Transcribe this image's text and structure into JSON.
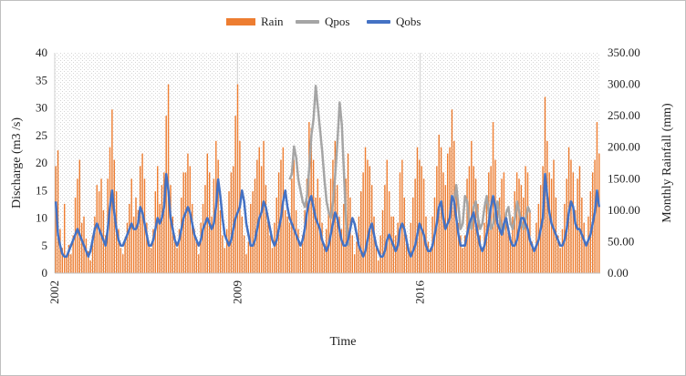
{
  "chart_data": {
    "type": "bar+line",
    "xlabel": "Time",
    "ylabel_left": "Discharge (m3 /s)",
    "ylabel_right": "Monthly Rainfall (mm)",
    "ylim_left": [
      0,
      40
    ],
    "ylim_right": [
      0,
      350
    ],
    "yticks_left": [
      "0",
      "5",
      "10",
      "15",
      "20",
      "25",
      "30",
      "35",
      "40"
    ],
    "yticks_right": [
      "0.00",
      "50.00",
      "100.00",
      "150.00",
      "200.00",
      "250.00",
      "300.00",
      "350.00"
    ],
    "xticks": [
      "2002",
      "2009",
      "2016"
    ],
    "x_range": [
      2002,
      2022.9
    ],
    "grid": "patterned background",
    "legend_position": "top",
    "colors": {
      "rain": "#ED7D31",
      "qpos": "#A5A5A5",
      "qobs": "#4472C4"
    },
    "series": [
      {
        "name": "Rain",
        "axis": "right",
        "type": "bar"
      },
      {
        "name": "Qpos",
        "axis": "left",
        "type": "line",
        "segments": [
          {
            "start": 2011.0,
            "step": 0.0833,
            "values": [
              17,
              18,
              23,
              21,
              17,
              15,
              13,
              12,
              14,
              19,
              25,
              28,
              34,
              30,
              26,
              22,
              17,
              13,
              11,
              10,
              13,
              18,
              24,
              31,
              27,
              18,
              9,
              5
            ]
          },
          {
            "start": 2017.3,
            "step": 0.0833,
            "values": [
              13,
              16,
              12,
              8,
              9,
              14,
              13,
              9,
              8,
              12,
              13,
              10,
              8,
              9,
              12,
              14,
              11,
              8,
              9,
              11,
              13,
              10,
              7,
              8,
              11,
              12,
              9,
              8,
              10,
              13,
              11,
              9,
              8,
              10,
              12,
              11
            ]
          }
        ]
      },
      {
        "name": "Qobs",
        "axis": "left",
        "type": "line"
      }
    ],
    "rain_monthly": [
      170,
      195,
      70,
      40,
      110,
      25,
      45,
      30,
      60,
      120,
      150,
      180,
      80,
      90,
      55,
      35,
      20,
      60,
      90,
      140,
      130,
      150,
      100,
      60,
      150,
      200,
      260,
      180,
      130,
      70,
      40,
      30,
      50,
      80,
      110,
      150,
      90,
      120,
      100,
      170,
      190,
      150,
      80,
      50,
      40,
      70,
      130,
      170,
      110,
      140,
      160,
      250,
      300,
      140,
      90,
      60,
      40,
      70,
      120,
      160,
      160,
      190,
      170,
      110,
      70,
      50,
      30,
      80,
      110,
      140,
      190,
      160,
      90,
      150,
      210,
      180,
      100,
      60,
      40,
      70,
      130,
      160,
      170,
      250,
      300,
      210,
      90,
      60,
      30,
      50,
      110,
      130,
      150,
      180,
      200,
      170,
      210,
      140,
      90,
      60,
      40,
      80,
      120,
      160,
      180,
      200,
      100,
      90,
      80,
      150,
      180,
      100,
      70,
      40,
      60,
      100,
      150,
      240,
      230,
      180,
      120,
      150,
      120,
      80,
      40,
      70,
      100,
      150,
      180,
      210,
      140,
      90,
      70,
      110,
      150,
      190,
      120,
      60,
      30,
      50,
      90,
      130,
      160,
      200,
      180,
      170,
      140,
      90,
      40,
      20,
      60,
      100,
      140,
      180,
      130,
      90,
      90,
      60,
      80,
      160,
      180,
      120,
      60,
      40,
      80,
      120,
      150,
      200,
      180,
      170,
      150,
      90,
      50,
      40,
      90,
      120,
      170,
      220,
      200,
      160,
      140,
      190,
      200,
      260,
      210,
      130,
      80,
      60,
      40,
      60,
      150,
      170,
      210,
      170,
      150,
      110,
      60,
      40,
      80,
      120,
      160,
      170,
      240,
      180,
      100,
      120,
      150,
      160,
      90,
      70,
      50,
      90,
      130,
      160,
      150,
      140,
      120,
      170,
      160,
      100,
      50,
      40,
      80,
      110,
      140,
      170,
      280,
      210,
      160,
      150,
      180,
      120,
      60,
      40,
      70,
      110,
      150,
      200,
      180,
      160,
      100,
      150,
      170,
      120,
      80,
      50,
      90,
      130,
      160,
      180,
      240,
      190
    ],
    "qobs_monthly": [
      13,
      7,
      5,
      3.5,
      3,
      3,
      4,
      5,
      6,
      7,
      8,
      7,
      6,
      5,
      4,
      3,
      4,
      6,
      8,
      9,
      8,
      7,
      6,
      5,
      8,
      12,
      15,
      11,
      8,
      6,
      5,
      5,
      6,
      7,
      8,
      9,
      8,
      8,
      9,
      12,
      11,
      9,
      7,
      5,
      5,
      6,
      8,
      10,
      9,
      10,
      12,
      18,
      15,
      10,
      8,
      6,
      5,
      6,
      8,
      10,
      11,
      12,
      11,
      9,
      7,
      6,
      5,
      6,
      8,
      9,
      10,
      9,
      8,
      9,
      12,
      17,
      14,
      10,
      7,
      6,
      5,
      6,
      8,
      10,
      11,
      12,
      15,
      13,
      9,
      7,
      5,
      5,
      6,
      8,
      10,
      11,
      13,
      12,
      10,
      8,
      6,
      5,
      6,
      8,
      10,
      13,
      15,
      12,
      10,
      9,
      8,
      7,
      6,
      5,
      6,
      8,
      11,
      13,
      14,
      12,
      10,
      9,
      8,
      6,
      5,
      4,
      5,
      7,
      9,
      11,
      10,
      8,
      6,
      5,
      5,
      6,
      8,
      10,
      9,
      7,
      5,
      4,
      3,
      4,
      6,
      8,
      9,
      7,
      5,
      4,
      3,
      3,
      4,
      6,
      7,
      6,
      5,
      4,
      5,
      8,
      9,
      8,
      6,
      4,
      3,
      4,
      5,
      7,
      9,
      8,
      7,
      5,
      4,
      4,
      5,
      7,
      9,
      12,
      13,
      10,
      8,
      9,
      10,
      14,
      13,
      10,
      7,
      5,
      5,
      5,
      7,
      9,
      10,
      11,
      9,
      7,
      5,
      4,
      5,
      7,
      9,
      12,
      14,
      12,
      9,
      8,
      7,
      9,
      10,
      8,
      6,
      5,
      5,
      6,
      8,
      10,
      10,
      9,
      8,
      6,
      5,
      4,
      5,
      6,
      8,
      10,
      18,
      14,
      11,
      9,
      8,
      7,
      6,
      5,
      5,
      6,
      8,
      11,
      13,
      12,
      9,
      8,
      8,
      7,
      6,
      5,
      6,
      7,
      9,
      11,
      15,
      12
    ]
  },
  "legend": {
    "rain": "Rain",
    "qpos": "Qpos",
    "qobs": "Qobs"
  }
}
